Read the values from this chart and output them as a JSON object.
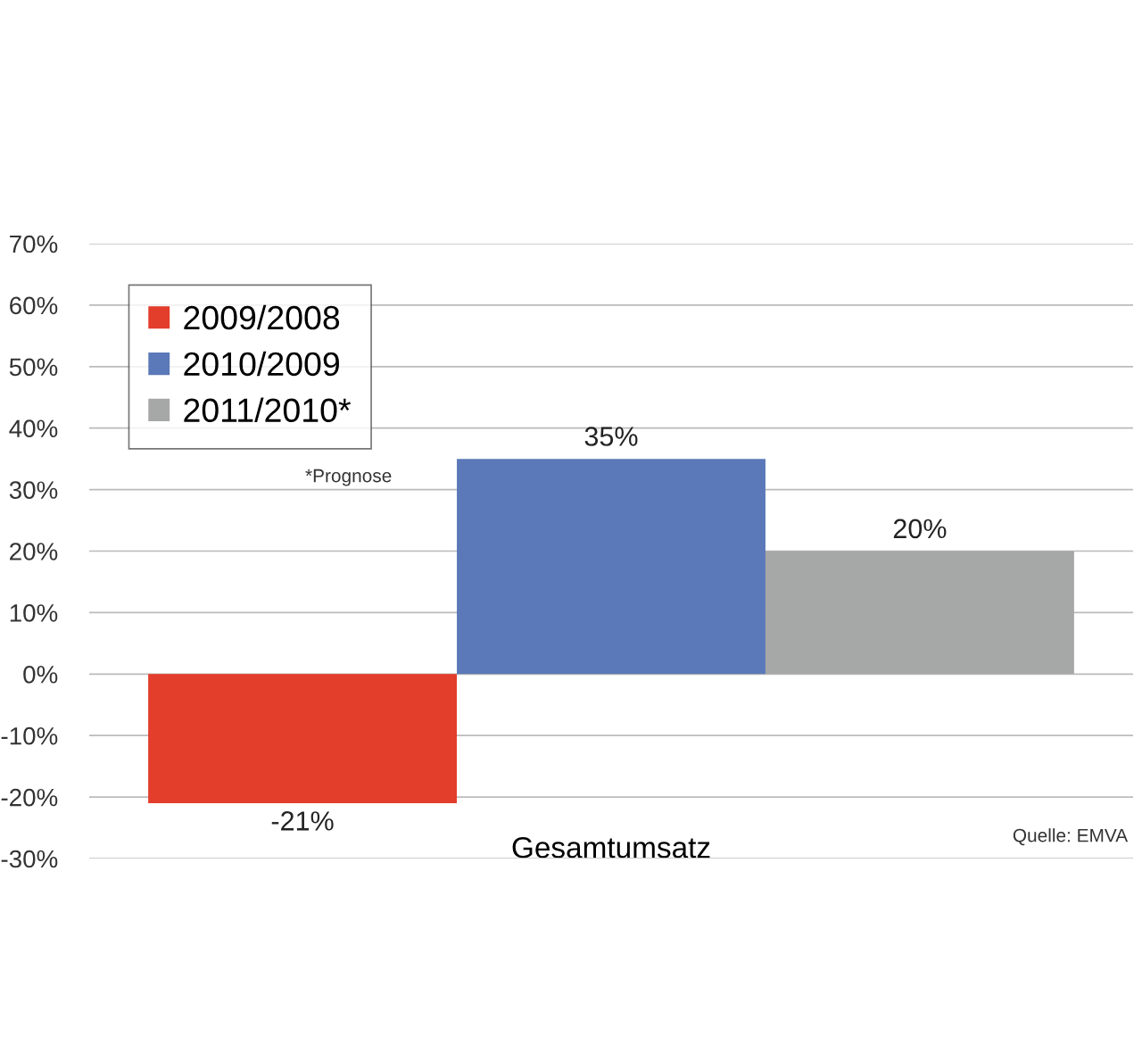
{
  "chart_data": {
    "type": "bar",
    "categories": [
      "Gesamtumsatz"
    ],
    "series": [
      {
        "name": "2009/2008",
        "color": "#e33d2b",
        "values": [
          -21
        ],
        "value_labels": [
          "-21%"
        ]
      },
      {
        "name": "2010/2009",
        "color": "#5b79b8",
        "values": [
          35
        ],
        "value_labels": [
          "35%"
        ]
      },
      {
        "name": "2011/2010*",
        "color": "#a6a7a7",
        "values": [
          20
        ],
        "value_labels": [
          "20%"
        ]
      }
    ],
    "ylim": [
      -30,
      70
    ],
    "yticks": [
      {
        "value": -30,
        "label": "-30%"
      },
      {
        "value": -20,
        "label": "-20%"
      },
      {
        "value": -10,
        "label": "-10%"
      },
      {
        "value": 0,
        "label": "0%"
      },
      {
        "value": 10,
        "label": "10%"
      },
      {
        "value": 20,
        "label": "20%"
      },
      {
        "value": 30,
        "label": "30%"
      },
      {
        "value": 40,
        "label": "40%"
      },
      {
        "value": 50,
        "label": "50%"
      },
      {
        "value": 60,
        "label": "60%"
      },
      {
        "value": 70,
        "label": "70%"
      }
    ],
    "grid": "y",
    "legend": "top left",
    "annotations": [
      "*Prognose",
      "Quelle: EMVA"
    ]
  }
}
